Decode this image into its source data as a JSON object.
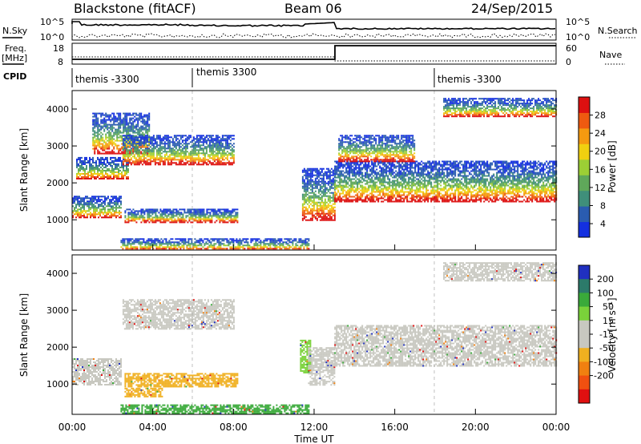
{
  "header": {
    "station": "Blackstone (fitACF)",
    "beam": "Beam 06",
    "date": "24/Sep/2015"
  },
  "top_panels": {
    "nsky_label": "N.Sky",
    "nsky_ticks": [
      "10^5",
      "10^0"
    ],
    "nsearch_label": "N.Search",
    "nsearch_ticks": [
      "10^5",
      "10^0"
    ],
    "freq_label": "Freq.",
    "freq_unit": "[MHz]",
    "freq_ticks": [
      "18",
      "8"
    ],
    "nave_label": "Nave",
    "nave_ticks": [
      "60",
      "0"
    ],
    "cpid_label": "CPID",
    "cpid_segments": [
      {
        "label": "themis -3300",
        "start_h": 0,
        "end_h": 6
      },
      {
        "label": "themis 3300",
        "start_h": 6,
        "end_h": 18
      },
      {
        "label": "themis -3300",
        "start_h": 18,
        "end_h": 24
      }
    ]
  },
  "chart_data": [
    {
      "type": "heatmap",
      "name": "power_panel",
      "ylabel": "Slant Range [km]",
      "ylim": [
        180,
        4500
      ],
      "yticks": [
        "1000",
        "2000",
        "3000",
        "4000"
      ],
      "xlim": [
        0,
        24
      ],
      "colorbar_label": "Power [dB]",
      "colorbar_ticks": [
        "4",
        "8",
        "12",
        "16",
        "20",
        "24",
        "28"
      ],
      "colorbar_colors": [
        "#1430e0",
        "#2a5cb0",
        "#3f8f7a",
        "#5fa85a",
        "#9ccf35",
        "#f0d010",
        "#f59a10",
        "#ee5a10",
        "#dd1010"
      ],
      "backscatter_regions": [
        {
          "t0": 0.0,
          "t1": 2.4,
          "r0": 1050,
          "r1": 1650,
          "note": "ground/ionospheric band descending"
        },
        {
          "t0": 0.2,
          "t1": 2.8,
          "r0": 2100,
          "r1": 2700
        },
        {
          "t0": 1.0,
          "t1": 3.8,
          "r0": 2800,
          "r1": 3900
        },
        {
          "t0": 2.5,
          "t1": 8.0,
          "r0": 2500,
          "r1": 3300
        },
        {
          "t0": 2.6,
          "t1": 8.2,
          "r0": 950,
          "r1": 1300
        },
        {
          "t0": 2.4,
          "t1": 11.7,
          "r0": 200,
          "r1": 500
        },
        {
          "t0": 11.4,
          "t1": 13.0,
          "r0": 1000,
          "r1": 2400
        },
        {
          "t0": 13.0,
          "t1": 24.0,
          "r0": 1500,
          "r1": 2600
        },
        {
          "t0": 13.2,
          "t1": 17.0,
          "r0": 2600,
          "r1": 3300
        },
        {
          "t0": 18.4,
          "t1": 24.0,
          "r0": 3800,
          "r1": 4300
        }
      ]
    },
    {
      "type": "heatmap",
      "name": "velocity_panel",
      "ylabel": "Slant Range [km]",
      "xlabel": "Time UT",
      "ylim": [
        180,
        4500
      ],
      "yticks": [
        "1000",
        "2000",
        "3000",
        "4000"
      ],
      "xlim": [
        0,
        24
      ],
      "xticks": [
        "00:00",
        "04:00",
        "08:00",
        "12:00",
        "16:00",
        "20:00",
        "00:00"
      ],
      "colorbar_label": "Velocity [m s⁻¹]",
      "colorbar_ticks": [
        "200",
        "100",
        "50",
        "15",
        "-15",
        "-50",
        "-100",
        "-200"
      ],
      "colorbar_colors": [
        "#2030c0",
        "#2c7a6a",
        "#3aaa3a",
        "#7ad23a",
        "#c8c8c0",
        "#c8c8c0",
        "#f0b020",
        "#f08010",
        "#f05010",
        "#e01010"
      ],
      "backscatter_regions": [
        {
          "t0": 0.0,
          "t1": 2.4,
          "r0": 1000,
          "r1": 1700,
          "color": "gray"
        },
        {
          "t0": 2.6,
          "t1": 8.2,
          "r0": 950,
          "r1": 1300,
          "color": "orange"
        },
        {
          "t0": 2.6,
          "t1": 4.5,
          "r0": 650,
          "r1": 900,
          "color": "orange"
        },
        {
          "t0": 2.5,
          "t1": 8.0,
          "r0": 2500,
          "r1": 3300,
          "color": "gray"
        },
        {
          "t0": 2.4,
          "t1": 11.7,
          "r0": 200,
          "r1": 450,
          "color": "green"
        },
        {
          "t0": 11.3,
          "t1": 11.8,
          "r0": 1300,
          "r1": 2200,
          "color": "lightgreen"
        },
        {
          "t0": 11.7,
          "t1": 13.0,
          "r0": 1000,
          "r1": 2000,
          "color": "gray"
        },
        {
          "t0": 13.0,
          "t1": 24.0,
          "r0": 1500,
          "r1": 2600,
          "color": "gray"
        },
        {
          "t0": 18.4,
          "t1": 24.0,
          "r0": 3800,
          "r1": 4300,
          "color": "gray"
        }
      ]
    }
  ]
}
